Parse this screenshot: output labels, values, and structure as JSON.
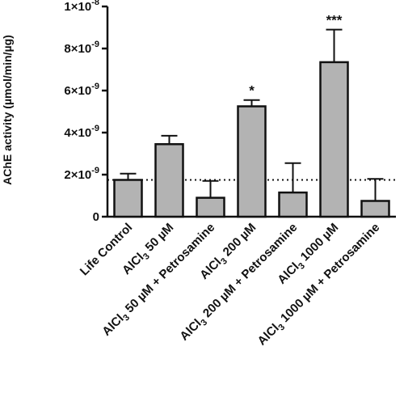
{
  "chart_data": {
    "type": "bar",
    "title": "",
    "xlabel": "",
    "ylabel": "AChE activity (µmol/min/µg)",
    "ylim": [
      0,
      1e-08
    ],
    "y_ticks": [
      {
        "value": 0,
        "label": "0"
      },
      {
        "value": 2e-09,
        "label": "2×10",
        "exp": "-9"
      },
      {
        "value": 4e-09,
        "label": "4×10",
        "exp": "-9"
      },
      {
        "value": 6e-09,
        "label": "6×10",
        "exp": "-9"
      },
      {
        "value": 8e-09,
        "label": "8×10",
        "exp": "-9"
      },
      {
        "value": 1e-08,
        "label": "1×10",
        "exp": "-8"
      }
    ],
    "categories": [
      "Life Control",
      "AlCl3 50 µM",
      "AlCl3 50 µM + Petrosamine",
      "AlCl3 200 µM",
      "AlCl3 200 µM + Petrosamine",
      "AlCl3 1000 µM",
      "AlCl3 1000 µM + Petrosamine"
    ],
    "category_labels": [
      [
        {
          "t": "Life Control"
        }
      ],
      [
        {
          "t": "AlCl"
        },
        {
          "t": "3",
          "sub": true
        },
        {
          "t": " 50 µM"
        }
      ],
      [
        {
          "t": "AlCl"
        },
        {
          "t": "3",
          "sub": true
        },
        {
          "t": " 50 µM + Petrosamine"
        }
      ],
      [
        {
          "t": "AlCl"
        },
        {
          "t": "3",
          "sub": true
        },
        {
          "t": " 200 µM"
        }
      ],
      [
        {
          "t": "AlCl"
        },
        {
          "t": "3",
          "sub": true
        },
        {
          "t": " 200 µM + Petrosamine"
        }
      ],
      [
        {
          "t": "AlCl"
        },
        {
          "t": "3",
          "sub": true
        },
        {
          "t": " 1000 µM"
        }
      ],
      [
        {
          "t": "AlCl"
        },
        {
          "t": "3",
          "sub": true
        },
        {
          "t": " 1000 µM + Petrosamine"
        }
      ]
    ],
    "values": [
      1.75e-09,
      3.45e-09,
      9e-10,
      5.25e-09,
      1.15e-09,
      7.35e-09,
      7.5e-10
    ],
    "errors": [
      3e-10,
      4e-10,
      8e-10,
      3e-10,
      1.4e-09,
      1.55e-09,
      1.05e-09
    ],
    "significance": [
      "",
      "",
      "",
      "*",
      "",
      "***",
      ""
    ],
    "reference_line": 1.75e-09,
    "bar_color": "#b3b3b3",
    "grid": false,
    "legend": "none"
  }
}
